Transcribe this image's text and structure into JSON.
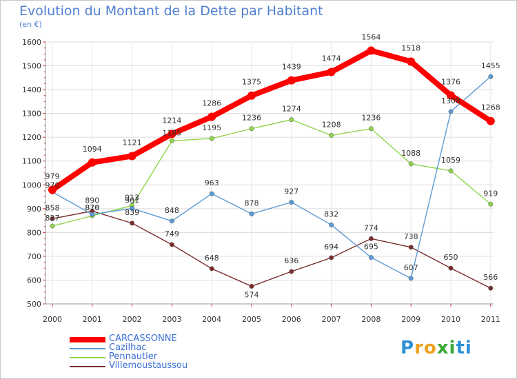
{
  "title": "Evolution du Montant de la Dette par Habitant",
  "unit": "(en €)",
  "logo": {
    "text": "Proxiti",
    "letters": [
      "P",
      "r",
      "o",
      "x",
      "i",
      "t",
      "i"
    ],
    "colors": [
      "#2a8fd6",
      "#f0a020",
      "#f0a020",
      "#3aaa35",
      "#3aaa35",
      "#2a8fd6",
      "#2a8fd6"
    ]
  },
  "chart_data": {
    "type": "line",
    "x": [
      "2000",
      "2001",
      "2002",
      "2003",
      "2004",
      "2005",
      "2006",
      "2007",
      "2008",
      "2009",
      "2010",
      "2011"
    ],
    "ylim": [
      500,
      1600
    ],
    "yticks": [
      "500",
      "600",
      "700",
      "800",
      "900",
      "1000",
      "1100",
      "1200",
      "1300",
      "1400",
      "1500",
      "1600"
    ],
    "grid": true,
    "legend_position": "bottom-left",
    "series": [
      {
        "name": "Villemoustaussou",
        "color": "#7a2b2b",
        "values": [
          858,
          890,
          839,
          749,
          648,
          574,
          636,
          694,
          774,
          738,
          650,
          566
        ],
        "labels": [
          "858",
          "890",
          "839",
          "749",
          "648",
          "574",
          "636",
          "694",
          "774",
          "738",
          "650",
          "566"
        ],
        "label_dy": [
          -16,
          -16,
          -16,
          -16,
          -16,
          12,
          -16,
          -16,
          -16,
          -16,
          -16,
          -16
        ]
      },
      {
        "name": "Pennautier",
        "color": "#8fd44a",
        "values": [
          827,
          870,
          913,
          1185,
          1195,
          1236,
          1274,
          1208,
          1236,
          1088,
          1059,
          919
        ],
        "labels": [
          "827",
          "870",
          "913",
          "1185",
          "1195",
          "1236",
          "1274",
          "1208",
          "1236",
          "1088",
          "1059",
          "919"
        ],
        "label_dy": [
          -12,
          -12,
          -12,
          -12,
          -16,
          -16,
          -16,
          -16,
          -16,
          -16,
          -16,
          -16
        ]
      },
      {
        "name": "Cazilhac",
        "color": "#5b9ad5",
        "values": [
          970,
          876,
          901,
          848,
          963,
          878,
          927,
          832,
          695,
          607,
          1308,
          1455
        ],
        "labels": [
          "970",
          "876",
          "901",
          "848",
          "963",
          "878",
          "927",
          "832",
          "695",
          "607",
          "1308",
          "1455"
        ],
        "label_dy": [
          -10,
          -10,
          -12,
          -16,
          -16,
          -16,
          -16,
          -16,
          -16,
          -16,
          -16,
          -16
        ]
      },
      {
        "name": "CARCASSONNE",
        "color": "#ff0000",
        "values": [
          979,
          1094,
          1121,
          1214,
          1286,
          1375,
          1439,
          1474,
          1564,
          1518,
          1376,
          1268
        ],
        "labels": [
          "979",
          "1094",
          "1121",
          "1214",
          "1286",
          "1375",
          "1439",
          "1474",
          "1564",
          "1518",
          "1376",
          "1268"
        ],
        "label_dy": [
          -20,
          -20,
          -20,
          -20,
          -20,
          -20,
          -20,
          -20,
          -20,
          -20,
          -20,
          -20
        ]
      }
    ],
    "legend_order": [
      "CARCASSONNE",
      "Cazilhac",
      "Pennautier",
      "Villemoustaussou"
    ]
  }
}
